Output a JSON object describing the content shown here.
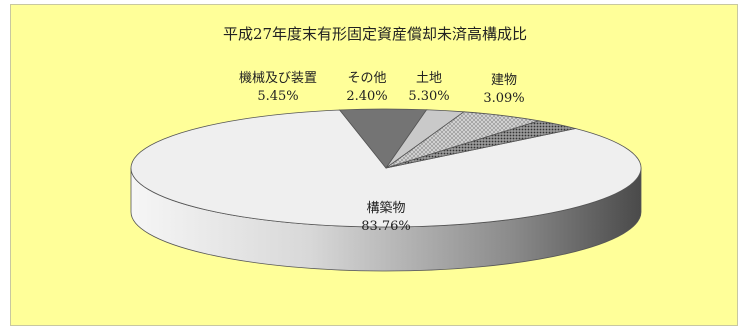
{
  "chart_data": {
    "type": "pie",
    "title": "平成27年度末有形固定資産償却未済高構成比",
    "three_d": true,
    "legend": "none",
    "slices": [
      {
        "label": "構築物",
        "value": 83.76,
        "display": "83.76%",
        "color": "#eeeeee"
      },
      {
        "label": "機械及び装置",
        "value": 5.45,
        "display": "5.45%",
        "color": "#777777"
      },
      {
        "label": "その他",
        "value": 2.4,
        "display": "2.40%",
        "color": "#c8c8c8"
      },
      {
        "label": "土地",
        "value": 5.3,
        "display": "5.30%",
        "color": "#bdbdbd"
      },
      {
        "label": "建物",
        "value": 3.09,
        "display": "3.09%",
        "color": "#6a6a6a"
      }
    ]
  }
}
